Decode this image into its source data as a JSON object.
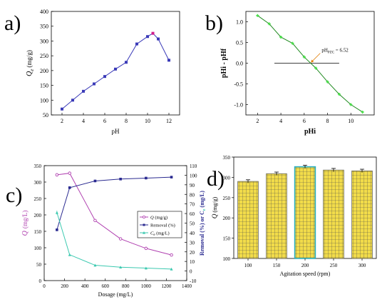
{
  "panels": {
    "a": {
      "label": "a)"
    },
    "b": {
      "label": "b)"
    },
    "c": {
      "label": "c)"
    },
    "d": {
      "label": "d)"
    }
  },
  "chart_data": [
    {
      "id": "a",
      "type": "line",
      "xlabel": "pH",
      "ylabel": "Qe (mg/g)",
      "ylabel_main": "Q",
      "ylabel_sub": "e",
      "ylabel_units": "(mg/g)",
      "xlim": [
        1,
        13
      ],
      "ylim": [
        50,
        400
      ],
      "xticks": [
        2,
        4,
        6,
        8,
        10,
        12
      ],
      "yticks": [
        50,
        100,
        150,
        200,
        250,
        300,
        350,
        400
      ],
      "color": "#3a3ab8",
      "x": [
        2,
        3,
        4,
        5,
        6,
        7,
        8,
        9,
        10,
        10.5,
        11,
        12
      ],
      "y": [
        70,
        100,
        130,
        155,
        180,
        205,
        228,
        290,
        315,
        326,
        307,
        235
      ],
      "error": [
        2,
        2,
        2,
        2,
        2,
        3,
        3,
        4,
        4,
        4,
        5,
        4
      ],
      "highlight_point_color": "#d01c8b"
    },
    {
      "id": "b",
      "type": "line",
      "xlabel": "pHi",
      "ylabel": "pHi - pHf",
      "xlim": [
        1,
        12
      ],
      "ylim": [
        -1.25,
        1.25
      ],
      "xticks": [
        2,
        4,
        6,
        8,
        10
      ],
      "yticks": [
        -1.0,
        -0.5,
        0.0,
        0.5,
        1.0
      ],
      "ytick_labels": [
        "-1.0",
        "-0.5",
        "0.0",
        "0.5",
        "1.0"
      ],
      "color": "#1f8a1f",
      "x": [
        2,
        3,
        4,
        5,
        6,
        7,
        8,
        9,
        10,
        11
      ],
      "y": [
        1.15,
        0.95,
        0.63,
        0.48,
        0.15,
        -0.12,
        -0.45,
        -0.75,
        -1.0,
        -1.18
      ],
      "zero_line": true,
      "annotation": {
        "text": "pHPZC = 6.52",
        "main": "pH",
        "sub": "PZC",
        "rest": " = 6.52",
        "x": 6.52,
        "y": 0
      }
    },
    {
      "id": "c",
      "type": "line",
      "xlabel": "Dosage (mg/L)",
      "ylabel_left": "Q (mg/L)",
      "ylabel_left_main": "Q",
      "ylabel_left_units": "(mg/L)",
      "ylabel_right": "Removal (%) or Ce (mg/L)",
      "ylabel_right_a": "Removal (%) or C",
      "ylabel_right_sub": "e",
      "ylabel_right_b": " (mg/L)",
      "xlim": [
        0,
        1400
      ],
      "ylim_left": [
        0,
        350
      ],
      "ylim_right": [
        -10,
        110
      ],
      "xticks": [
        0,
        200,
        400,
        600,
        800,
        1000,
        1200,
        1400
      ],
      "yticks_left": [
        0,
        50,
        100,
        150,
        200,
        250,
        300,
        350
      ],
      "yticks_right": [
        -10,
        0,
        10,
        20,
        30,
        40,
        50,
        60,
        70,
        80,
        90,
        100,
        110
      ],
      "series": [
        {
          "name": "Q (mg/g)",
          "label_main": "Q",
          "label_rest": " (mg/g)",
          "axis": "left",
          "color": "#b040b0",
          "marker": "circle",
          "x": [
            125,
            250,
            500,
            750,
            1000,
            1250
          ],
          "y": [
            322,
            327,
            183,
            127,
            98,
            78
          ],
          "error": [
            5,
            5,
            3,
            2,
            2,
            2
          ]
        },
        {
          "name": "Removal (%)",
          "label_main": "Removal (%)",
          "label_rest": "",
          "axis": "right",
          "color": "#2a2a90",
          "marker": "square",
          "x": [
            125,
            250,
            500,
            750,
            1000,
            1250
          ],
          "y": [
            43,
            87,
            94,
            96,
            97,
            98
          ],
          "error": [
            1,
            1,
            1,
            1,
            1,
            1
          ]
        },
        {
          "name": "Ce (mg/L)",
          "label_main": "C",
          "label_sub": "e",
          "label_rest": " (mg/L)",
          "axis": "right",
          "color": "#3cc9b0",
          "marker": "triangle",
          "x": [
            125,
            250,
            500,
            750,
            1000,
            1250
          ],
          "y": [
            61,
            17,
            6,
            4,
            3,
            2
          ],
          "error": [
            2,
            1,
            1,
            1,
            1,
            1
          ]
        }
      ]
    },
    {
      "id": "d",
      "type": "bar",
      "xlabel": "Agitation speed (rpm)",
      "ylabel": "Q (mg/g)",
      "ylabel_main": "Q",
      "ylabel_units": "(mg/g)",
      "categories": [
        "100",
        "150",
        "200",
        "250",
        "300"
      ],
      "values": [
        290,
        309,
        326,
        318,
        316
      ],
      "error": [
        4,
        4,
        4,
        4,
        4
      ],
      "ylim": [
        100,
        350
      ],
      "yticks": [
        100,
        150,
        200,
        250,
        300,
        350
      ],
      "bar_color": "#f2dc4a",
      "hatch_color": "#3a3a3a",
      "highlight_index": 2,
      "highlight_color": "#2aaec0"
    }
  ]
}
